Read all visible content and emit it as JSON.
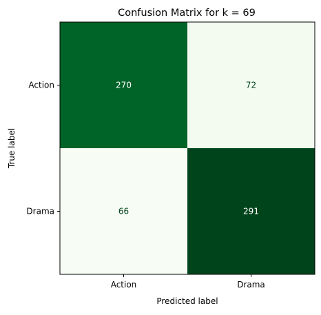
{
  "chart_data": {
    "type": "heatmap",
    "title": "Confusion Matrix for k = 69",
    "xlabel": "Predicted label",
    "ylabel": "True label",
    "x_categories": [
      "Action",
      "Drama"
    ],
    "y_categories": [
      "Action",
      "Drama"
    ],
    "values": [
      [
        270,
        72
      ],
      [
        66,
        291
      ]
    ],
    "colormap": "Greens",
    "color_low": "#f7fcf5",
    "color_high": "#00441b",
    "text_color_dark_cell": "#ffffff",
    "text_color_light_cell": "#00441b",
    "grid": false,
    "colorbar": false
  }
}
